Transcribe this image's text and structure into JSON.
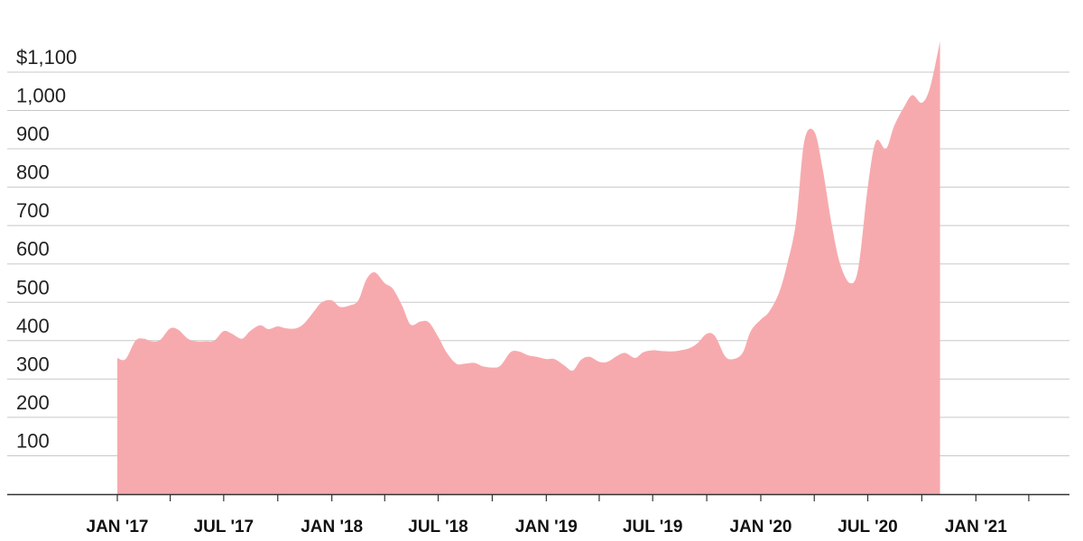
{
  "chart_data": {
    "type": "area",
    "title": "",
    "xlabel": "",
    "ylabel": "",
    "ylim": [
      0,
      1200
    ],
    "grid": true,
    "colors": {
      "area": "#f7aaae",
      "grid": "#c8c8c8",
      "axis": "#333333"
    },
    "y_ticks": [
      {
        "value": 100,
        "label": "100"
      },
      {
        "value": 200,
        "label": "200"
      },
      {
        "value": 300,
        "label": "300"
      },
      {
        "value": 400,
        "label": "400"
      },
      {
        "value": 500,
        "label": "500"
      },
      {
        "value": 600,
        "label": "600"
      },
      {
        "value": 700,
        "label": "700"
      },
      {
        "value": 800,
        "label": "800"
      },
      {
        "value": 900,
        "label": "900"
      },
      {
        "value": 1000,
        "label": "1,000"
      },
      {
        "value": 1100,
        "label": "$1,100"
      }
    ],
    "x_ticks": [
      {
        "date": "2017-01-01",
        "label": "JAN '17"
      },
      {
        "date": "2017-07-01",
        "label": "JUL '17"
      },
      {
        "date": "2018-01-01",
        "label": "JAN '18"
      },
      {
        "date": "2018-07-01",
        "label": "JUL '18"
      },
      {
        "date": "2019-01-01",
        "label": "JAN '19"
      },
      {
        "date": "2019-07-01",
        "label": "JUL '19"
      },
      {
        "date": "2020-01-01",
        "label": "JAN '20"
      },
      {
        "date": "2020-07-01",
        "label": "JUL '20"
      },
      {
        "date": "2021-01-01",
        "label": "JAN '21"
      }
    ],
    "x_minor_ticks": [
      "2017-04-01",
      "2017-10-01",
      "2018-04-01",
      "2018-10-01",
      "2019-04-01",
      "2019-10-01",
      "2020-04-01",
      "2020-10-01",
      "2021-04-01"
    ],
    "series": [
      {
        "points": [
          [
            "2017-01-01",
            355
          ],
          [
            "2017-01-15",
            352
          ],
          [
            "2017-02-01",
            400
          ],
          [
            "2017-02-15",
            405
          ],
          [
            "2017-03-01",
            398
          ],
          [
            "2017-03-15",
            402
          ],
          [
            "2017-04-01",
            432
          ],
          [
            "2017-04-15",
            428
          ],
          [
            "2017-05-01",
            405
          ],
          [
            "2017-05-15",
            398
          ],
          [
            "2017-06-01",
            398
          ],
          [
            "2017-06-15",
            400
          ],
          [
            "2017-07-01",
            425
          ],
          [
            "2017-07-15",
            418
          ],
          [
            "2017-08-01",
            405
          ],
          [
            "2017-08-15",
            425
          ],
          [
            "2017-09-01",
            440
          ],
          [
            "2017-09-15",
            430
          ],
          [
            "2017-10-01",
            437
          ],
          [
            "2017-10-15",
            432
          ],
          [
            "2017-11-01",
            432
          ],
          [
            "2017-11-15",
            445
          ],
          [
            "2017-12-01",
            475
          ],
          [
            "2017-12-15",
            500
          ],
          [
            "2018-01-01",
            505
          ],
          [
            "2018-01-15",
            488
          ],
          [
            "2018-02-01",
            492
          ],
          [
            "2018-02-15",
            505
          ],
          [
            "2018-03-01",
            560
          ],
          [
            "2018-03-15",
            578
          ],
          [
            "2018-04-01",
            550
          ],
          [
            "2018-04-15",
            535
          ],
          [
            "2018-05-01",
            490
          ],
          [
            "2018-05-15",
            442
          ],
          [
            "2018-06-01",
            450
          ],
          [
            "2018-06-15",
            448
          ],
          [
            "2018-07-01",
            410
          ],
          [
            "2018-07-15",
            370
          ],
          [
            "2018-08-01",
            340
          ],
          [
            "2018-08-15",
            340
          ],
          [
            "2018-09-01",
            342
          ],
          [
            "2018-09-15",
            333
          ],
          [
            "2018-10-01",
            330
          ],
          [
            "2018-10-15",
            335
          ],
          [
            "2018-11-01",
            370
          ],
          [
            "2018-11-15",
            372
          ],
          [
            "2018-12-01",
            362
          ],
          [
            "2018-12-15",
            358
          ],
          [
            "2019-01-01",
            352
          ],
          [
            "2019-01-15",
            352
          ],
          [
            "2019-02-01",
            335
          ],
          [
            "2019-02-15",
            322
          ],
          [
            "2019-03-01",
            350
          ],
          [
            "2019-03-15",
            358
          ],
          [
            "2019-04-01",
            345
          ],
          [
            "2019-04-15",
            345
          ],
          [
            "2019-05-01",
            360
          ],
          [
            "2019-05-15",
            368
          ],
          [
            "2019-06-01",
            355
          ],
          [
            "2019-06-15",
            370
          ],
          [
            "2019-07-01",
            375
          ],
          [
            "2019-07-15",
            373
          ],
          [
            "2019-08-01",
            372
          ],
          [
            "2019-08-15",
            374
          ],
          [
            "2019-09-01",
            380
          ],
          [
            "2019-09-15",
            393
          ],
          [
            "2019-10-01",
            418
          ],
          [
            "2019-10-15",
            412
          ],
          [
            "2019-11-01",
            360
          ],
          [
            "2019-11-15",
            352
          ],
          [
            "2019-12-01",
            368
          ],
          [
            "2019-12-15",
            425
          ],
          [
            "2020-01-01",
            455
          ],
          [
            "2020-01-15",
            475
          ],
          [
            "2020-02-01",
            525
          ],
          [
            "2020-02-15",
            600
          ],
          [
            "2020-03-01",
            710
          ],
          [
            "2020-03-15",
            920
          ],
          [
            "2020-04-01",
            945
          ],
          [
            "2020-04-15",
            850
          ],
          [
            "2020-05-01",
            700
          ],
          [
            "2020-05-15",
            600
          ],
          [
            "2020-06-01",
            550
          ],
          [
            "2020-06-15",
            590
          ],
          [
            "2020-07-01",
            800
          ],
          [
            "2020-07-15",
            920
          ],
          [
            "2020-08-01",
            900
          ],
          [
            "2020-08-15",
            960
          ],
          [
            "2020-09-01",
            1010
          ],
          [
            "2020-09-15",
            1040
          ],
          [
            "2020-10-01",
            1020
          ],
          [
            "2020-10-15",
            1060
          ],
          [
            "2020-11-01",
            1180
          ]
        ]
      }
    ]
  }
}
